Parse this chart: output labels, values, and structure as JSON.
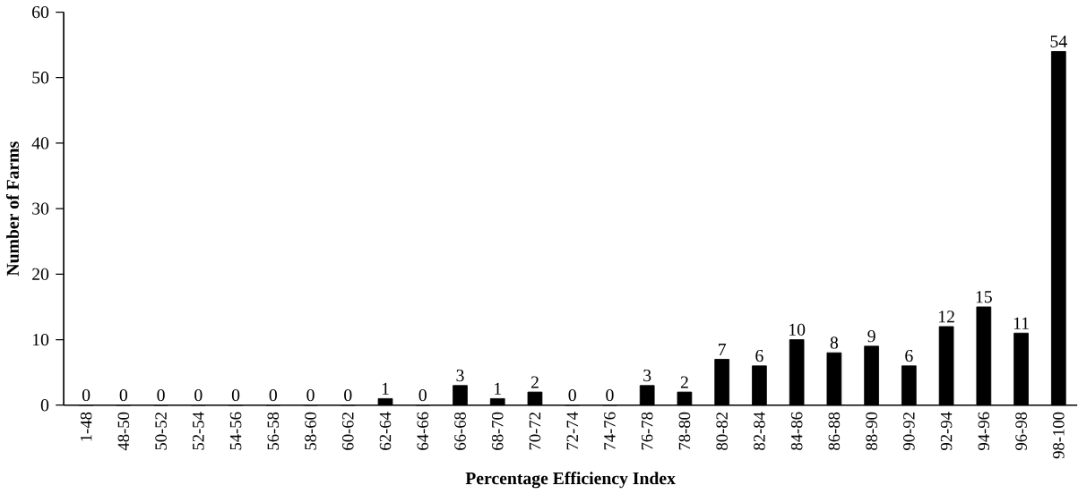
{
  "chart_data": {
    "type": "bar",
    "xlabel": "Percentage Efficiency Index",
    "ylabel": "Number  of  Farms",
    "categories": [
      "1-48",
      "48-50",
      "50-52",
      "52-54",
      "54-56",
      "56-58",
      "58-60",
      "60-62",
      "62-64",
      "64-66",
      "66-68",
      "68-70",
      "70-72",
      "72-74",
      "74-76",
      "76-78",
      "78-80",
      "80-82",
      "82-84",
      "84-86",
      "86-88",
      "88-90",
      "90-92",
      "92-94",
      "94-96",
      "96-98",
      "98-100"
    ],
    "values": [
      0,
      0,
      0,
      0,
      0,
      0,
      0,
      0,
      1,
      0,
      3,
      1,
      2,
      0,
      0,
      3,
      2,
      7,
      6,
      10,
      8,
      9,
      6,
      12,
      15,
      11,
      54
    ],
    "color": "#000000",
    "data_labels": true,
    "ylim": [
      0,
      60
    ],
    "yticks": [
      0,
      10,
      20,
      30,
      40,
      50,
      60
    ]
  }
}
